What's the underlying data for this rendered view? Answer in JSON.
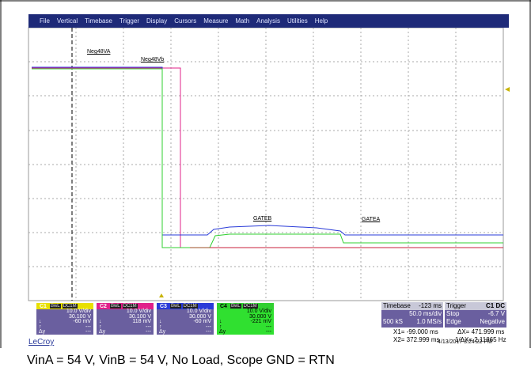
{
  "menu": [
    "File",
    "Vertical",
    "Timebase",
    "Trigger",
    "Display",
    "Cursors",
    "Measure",
    "Math",
    "Analysis",
    "Utilities",
    "Help"
  ],
  "trace_labels": [
    "Neg48VA",
    "Neg48Vb",
    "GATEB",
    "GATEA"
  ],
  "channels": [
    {
      "name": "C1",
      "tags": [
        "BwL",
        "DC1M"
      ],
      "rows": [
        "10.0 V/div",
        "30.100 V",
        "-60 mV"
      ],
      "extra": [
        "↓",
        "↑",
        "Δy"
      ],
      "dashes": [
        "---",
        "---"
      ]
    },
    {
      "name": "C2",
      "tags": [
        "BwL",
        "DC1M"
      ],
      "rows": [
        "10.0 V/div",
        "30.100 V",
        "118 mV"
      ],
      "extra": [
        "↓",
        "↑",
        "Δy"
      ],
      "dashes": [
        "---",
        "---"
      ]
    },
    {
      "name": "C3",
      "tags": [
        "BwL",
        "DC1M"
      ],
      "rows": [
        "10.0 V/div",
        "30.000 V",
        "-60 mV"
      ],
      "extra": [
        "↓",
        "↑",
        "Δy"
      ],
      "dashes": [
        "---",
        "---"
      ]
    },
    {
      "name": "C4",
      "tags": [
        "BwL",
        "DC1M"
      ],
      "rows": [
        "10.0 V/div",
        "30.000 V",
        "-221 mV"
      ],
      "extra": [
        "↓",
        "↑",
        "Δy"
      ],
      "dashes": [
        "---",
        "---"
      ]
    }
  ],
  "timebase": {
    "title": "Timebase",
    "offset": "-123 ms",
    "div": "50.0 ms/div",
    "samples": "500 kS",
    "rate": "1.0 MS/s"
  },
  "trigger": {
    "title": "Trigger",
    "source": "C1",
    "coupling": "DC",
    "mode": "Stop",
    "level": "-6.7 V",
    "type": "Edge",
    "slope": "Negative"
  },
  "cursors": {
    "x1": "X1= -99.000 ms",
    "dx": "ΔX= 471.999 ms",
    "x2": "X2= 372.999 ms",
    "inv": "1/ΔX= 2.11865 Hz"
  },
  "footer": {
    "brand": "LeCroy",
    "timestamp": "4/13/2017 3:24:22 PM"
  },
  "caption": "VinA = 54 V, VinB = 54 V, No Load, Scope GND = RTN"
}
